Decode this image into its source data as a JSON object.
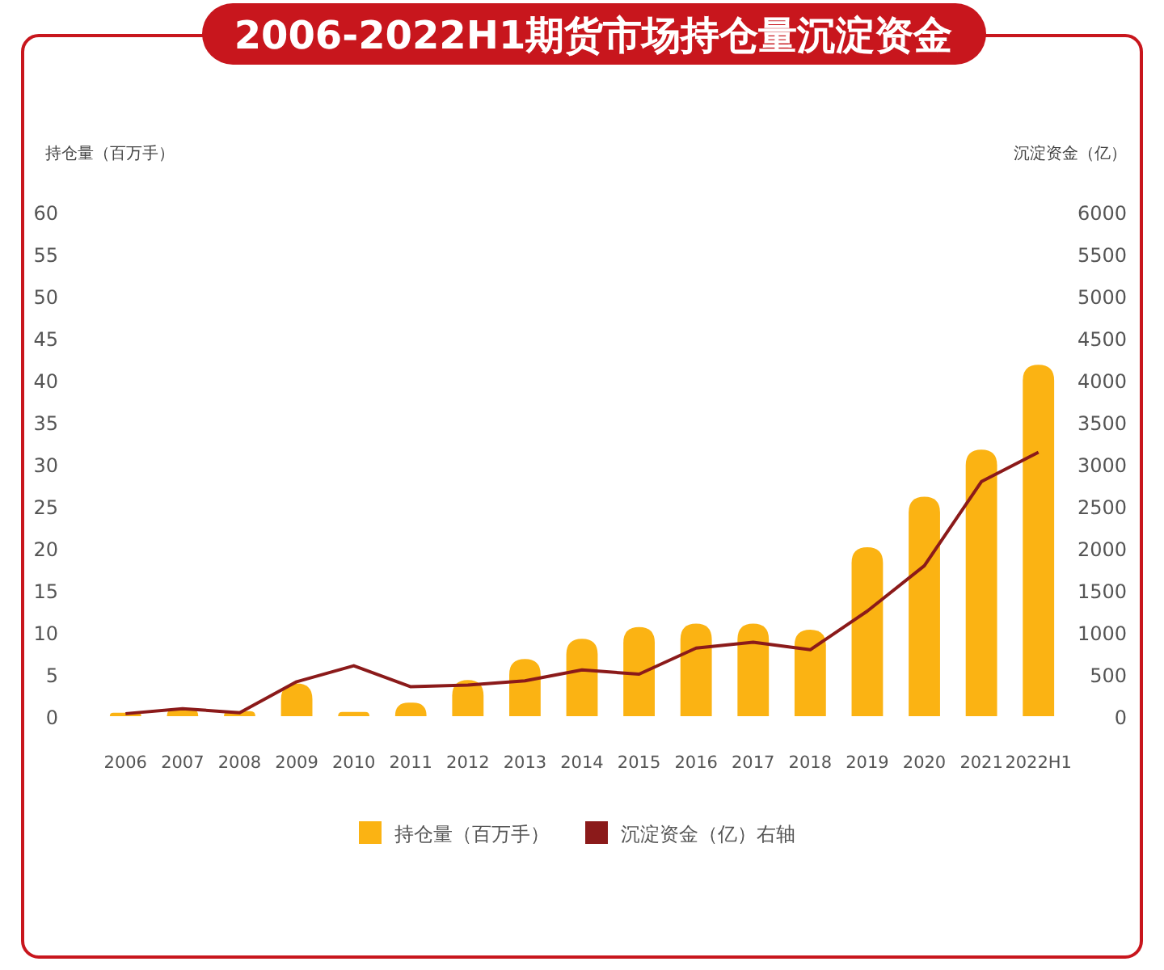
{
  "chart_data": {
    "type": "bar",
    "title": "2006-2022H1期货市场持仓量沉淀资金",
    "ylabel": "持仓量（百万手）",
    "y2label": "沉淀资金（亿）",
    "categories": [
      "2006",
      "2007",
      "2008",
      "2009",
      "2010",
      "2011",
      "2012",
      "2013",
      "2014",
      "2015",
      "2016",
      "2017",
      "2018",
      "2019",
      "2020",
      "2021",
      "2022H1"
    ],
    "series": [
      {
        "name": "持仓量（百万手）",
        "color": "#fbb313",
        "values": [
          0.4,
          0.9,
          0.6,
          3.9,
          0.5,
          1.6,
          4.3,
          6.8,
          9.2,
          10.6,
          11.0,
          11.0,
          10.3,
          20.1,
          26.1,
          31.7,
          41.8
        ]
      },
      {
        "name": "沉淀资金（亿）右轴",
        "type": "line",
        "axis": "y2",
        "color": "#8b1a1a",
        "values": [
          30,
          90,
          40,
          410,
          600,
          350,
          370,
          420,
          550,
          500,
          810,
          880,
          790,
          1250,
          1790,
          2790,
          3140
        ]
      }
    ],
    "ylim": [
      0,
      60
    ],
    "yticks": [
      0,
      5,
      10,
      15,
      20,
      25,
      30,
      35,
      40,
      45,
      50,
      55,
      60
    ],
    "y2lim": [
      0,
      6000
    ],
    "y2ticks": [
      0,
      500,
      1000,
      1500,
      2000,
      2500,
      3000,
      3500,
      4000,
      4500,
      5000,
      5500,
      6000
    ],
    "legend": "bottom"
  }
}
